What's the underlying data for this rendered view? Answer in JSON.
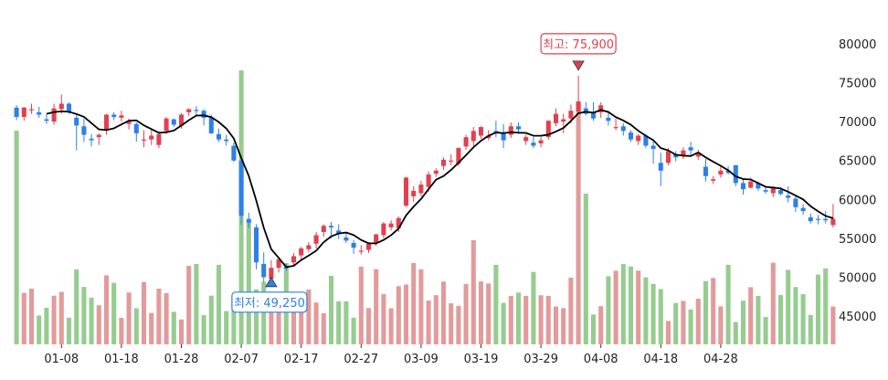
{
  "chart_data": {
    "type": "candlestick",
    "title": "",
    "xlabel": "",
    "ylabel": "",
    "ylim": [
      41500,
      82500
    ],
    "y_ticks": [
      45000,
      50000,
      55000,
      60000,
      65000,
      70000,
      75000,
      80000
    ],
    "y_axis_position": "right",
    "x_tick_labels": [
      {
        "index": 6,
        "label": "01-08"
      },
      {
        "index": 14,
        "label": "01-18"
      },
      {
        "index": 22,
        "label": "01-28"
      },
      {
        "index": 30,
        "label": "02-07"
      },
      {
        "index": 38,
        "label": "02-17"
      },
      {
        "index": 46,
        "label": "02-27"
      },
      {
        "index": 54,
        "label": "03-09"
      },
      {
        "index": 62,
        "label": "03-19"
      },
      {
        "index": 70,
        "label": "03-29"
      },
      {
        "index": 78,
        "label": "04-08"
      },
      {
        "index": 86,
        "label": "04-18"
      },
      {
        "index": 94,
        "label": "04-28"
      }
    ],
    "up_color": "#e0414f",
    "down_color": "#2f7fe8",
    "volume_up_color": "#e39a9a",
    "volume_down_color": "#96cc8f",
    "ma_color": "#000000",
    "ohlc": [
      [
        71800,
        72100,
        70200,
        70600
      ],
      [
        70600,
        71900,
        70100,
        71800
      ],
      [
        71500,
        72300,
        71000,
        71600
      ],
      [
        71200,
        71900,
        70500,
        70900
      ],
      [
        70300,
        70900,
        69700,
        70100
      ],
      [
        70000,
        72300,
        69600,
        71700
      ],
      [
        71600,
        73500,
        71000,
        72300
      ],
      [
        72300,
        72500,
        71000,
        71300
      ],
      [
        70500,
        71000,
        66300,
        69500
      ],
      [
        69400,
        70400,
        67400,
        68300
      ],
      [
        67800,
        68400,
        66800,
        67600
      ],
      [
        68000,
        68500,
        67000,
        68300
      ],
      [
        69000,
        71000,
        68300,
        70900
      ],
      [
        70900,
        71200,
        70200,
        70600
      ],
      [
        70500,
        71400,
        70000,
        70800
      ],
      [
        69700,
        70400,
        69000,
        70000
      ],
      [
        69700,
        69900,
        67400,
        68500
      ],
      [
        67700,
        68900,
        66700,
        67700
      ],
      [
        67700,
        68900,
        67000,
        68200
      ],
      [
        67000,
        68800,
        66600,
        68400
      ],
      [
        68800,
        70600,
        68400,
        70400
      ],
      [
        70300,
        70400,
        69300,
        69600
      ],
      [
        69500,
        71100,
        69100,
        70900
      ],
      [
        71200,
        71700,
        70700,
        71600
      ],
      [
        71500,
        72000,
        70800,
        71400
      ],
      [
        71400,
        71600,
        69500,
        70500
      ],
      [
        70500,
        70900,
        68400,
        68500
      ],
      [
        68400,
        69100,
        67400,
        67700
      ],
      [
        67700,
        68300,
        66900,
        67500
      ],
      [
        66900,
        67300,
        64800,
        65000
      ],
      [
        65000,
        65600,
        56700,
        57900
      ],
      [
        57500,
        58300,
        56300,
        57000
      ],
      [
        56400,
        56800,
        51000,
        51900
      ],
      [
        51700,
        53200,
        49300,
        50000
      ],
      [
        49800,
        52200,
        49250,
        51200
      ],
      [
        51200,
        52500,
        50600,
        52300
      ],
      [
        51300,
        51700,
        50800,
        51100
      ],
      [
        51900,
        53100,
        51500,
        52700
      ],
      [
        52800,
        53900,
        52300,
        53700
      ],
      [
        53600,
        54500,
        53200,
        54100
      ],
      [
        54300,
        55800,
        53700,
        55400
      ],
      [
        55800,
        56800,
        55200,
        56600
      ],
      [
        56600,
        57100,
        55000,
        56400
      ],
      [
        56000,
        56800,
        54900,
        55600
      ],
      [
        55100,
        55800,
        54400,
        54700
      ],
      [
        54400,
        54800,
        53000,
        53800
      ],
      [
        53400,
        54100,
        52900,
        53400
      ],
      [
        53500,
        54500,
        53100,
        54300
      ],
      [
        54400,
        55600,
        54000,
        55500
      ],
      [
        55400,
        57100,
        55000,
        56900
      ],
      [
        56400,
        57300,
        56000,
        56900
      ],
      [
        56300,
        57800,
        55800,
        57600
      ],
      [
        59200,
        62900,
        59000,
        62800
      ],
      [
        60400,
        61700,
        59700,
        61100
      ],
      [
        60800,
        62400,
        60400,
        61900
      ],
      [
        61600,
        63600,
        61000,
        63200
      ],
      [
        63300,
        64000,
        62900,
        63700
      ],
      [
        64300,
        65400,
        63800,
        65100
      ],
      [
        64900,
        65800,
        64400,
        65000
      ],
      [
        64600,
        66700,
        64300,
        66600
      ],
      [
        66800,
        68300,
        66400,
        68000
      ],
      [
        67500,
        69300,
        66800,
        68800
      ],
      [
        68200,
        69400,
        67800,
        69300
      ],
      [
        67900,
        68900,
        67600,
        68200
      ],
      [
        68800,
        70100,
        68000,
        68700
      ],
      [
        68500,
        69700,
        66600,
        67600
      ],
      [
        68300,
        69900,
        67900,
        69400
      ],
      [
        69400,
        69900,
        68400,
        69000
      ],
      [
        67500,
        68300,
        67000,
        68000
      ],
      [
        67300,
        68000,
        66600,
        66900
      ],
      [
        67200,
        68000,
        66700,
        67600
      ],
      [
        68000,
        70200,
        67700,
        70100
      ],
      [
        69800,
        71700,
        69400,
        71000
      ],
      [
        70000,
        71000,
        68500,
        70300
      ],
      [
        70400,
        72200,
        69800,
        71400
      ],
      [
        71300,
        75900,
        71000,
        72600
      ],
      [
        71700,
        72500,
        70800,
        71000
      ],
      [
        71200,
        72500,
        70100,
        70400
      ],
      [
        71200,
        72500,
        70500,
        72100
      ],
      [
        70500,
        71400,
        69500,
        70100
      ],
      [
        69300,
        70400,
        68900,
        69300
      ],
      [
        69400,
        69800,
        68200,
        68800
      ],
      [
        68600,
        68900,
        67400,
        67700
      ],
      [
        67500,
        68400,
        67000,
        68200
      ],
      [
        68200,
        68400,
        66600,
        66900
      ],
      [
        66900,
        67700,
        64600,
        66500
      ],
      [
        64700,
        66000,
        61700,
        63700
      ],
      [
        64700,
        66600,
        64400,
        66200
      ],
      [
        65800,
        66200,
        64900,
        65400
      ],
      [
        65600,
        66700,
        65200,
        66300
      ],
      [
        66700,
        67400,
        65700,
        66300
      ],
      [
        65500,
        66400,
        65100,
        66000
      ],
      [
        64200,
        65200,
        62300,
        63000
      ],
      [
        62400,
        63000,
        62000,
        62600
      ],
      [
        63200,
        64200,
        62800,
        63700
      ],
      [
        63700,
        64300,
        63200,
        63400
      ],
      [
        64400,
        64400,
        61700,
        62100
      ],
      [
        62100,
        62600,
        60600,
        61300
      ],
      [
        61500,
        62800,
        61400,
        62300
      ],
      [
        62100,
        62300,
        61100,
        61400
      ],
      [
        61200,
        61600,
        60700,
        61000
      ],
      [
        60800,
        61700,
        60300,
        61600
      ],
      [
        61200,
        61600,
        60500,
        60700
      ],
      [
        60500,
        61700,
        59600,
        60200
      ],
      [
        60100,
        60600,
        58400,
        59000
      ],
      [
        58900,
        59400,
        58000,
        58500
      ],
      [
        57700,
        58200,
        56900,
        57200
      ],
      [
        57500,
        58000,
        56800,
        57400
      ],
      [
        57500,
        58500,
        56900,
        57300
      ],
      [
        56700,
        59400,
        56400,
        57500
      ]
    ],
    "ma": [],
    "volume_pct": [],
    "annotations": [
      {
        "type": "max",
        "label": "최고: 75,900",
        "value": 75900,
        "marker": "down-triangle",
        "color": "#d9434f"
      },
      {
        "type": "min",
        "label": "최저: 49,250",
        "value": 49250,
        "marker": "up-triangle",
        "color": "#2f7fe8"
      }
    ]
  }
}
